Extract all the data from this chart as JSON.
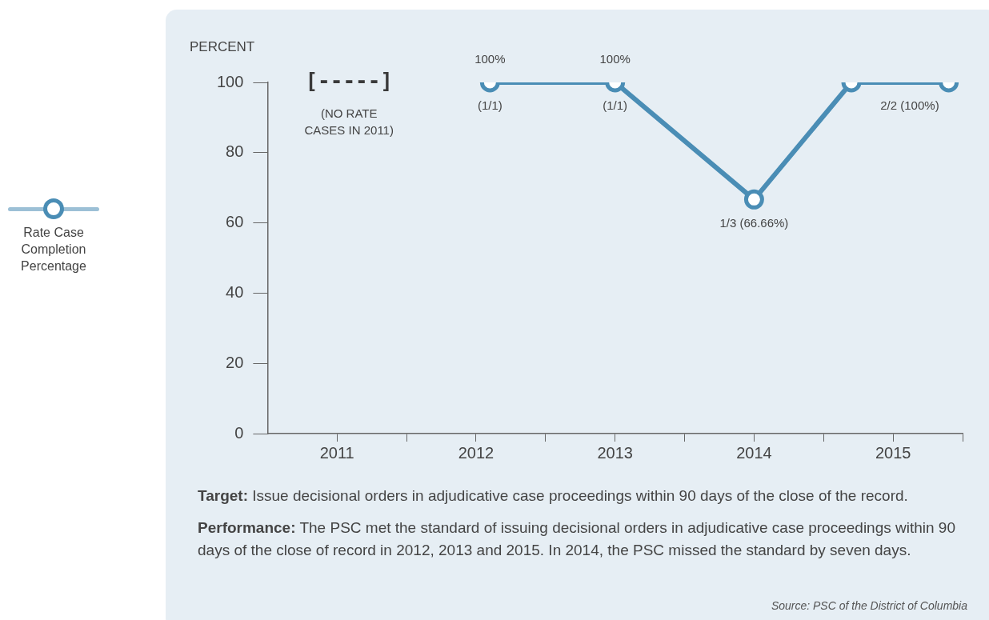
{
  "chart_data": {
    "type": "line",
    "ylabel": "PERCENT",
    "xlim": [
      2010.5,
      2015.5
    ],
    "xticks": [
      2011,
      {
        "value": 2011.5,
        "label": null
      },
      2012,
      {
        "value": 2012.5,
        "label": null
      },
      2013,
      {
        "value": 2013.5,
        "label": null
      },
      2014,
      {
        "value": 2014.5,
        "label": null
      },
      2015,
      {
        "value": 2015.5,
        "label": null
      }
    ],
    "ylim": [
      0,
      100
    ],
    "yticks": [
      0,
      20,
      40,
      60,
      80,
      100
    ],
    "grid": false,
    "legend": "left",
    "marker": "circle",
    "line_style": "solid",
    "series": [
      {
        "name": "Rate Case Completion Percentage",
        "color": "#4a8db5",
        "x": [
          2012.1,
          2013,
          2014,
          2014.7,
          2015.4
        ],
        "values": [
          100,
          100,
          66.66,
          100,
          100
        ]
      }
    ],
    "annotations": [
      "[-----]",
      "(NO RATE\nCASES IN 2011)",
      {
        "text": "100%",
        "x": 2012.1,
        "y": 100
      },
      {
        "text": "(1/1)",
        "x": 2012.1,
        "y": 100
      },
      {
        "text": "100%",
        "x": 2013,
        "y": 100
      },
      {
        "text": "(1/1)",
        "x": 2013,
        "y": 100
      },
      {
        "text": "1/3 (66.66%)",
        "x": 2014,
        "y": 66.66
      },
      {
        "text": "2/2 (100%)",
        "x": 2015.4,
        "y": 100
      },
      "Target: Issue decisional orders in adjudicative case proceedings within 90 days of the close of the record.",
      "Performance: The PSC met the standard of issuing decisional orders in adjudicative case proceedings within 90 days of the close of record in 2012, 2013 and 2015.  In 2014, the PSC missed the standard by seven days.",
      "Source: PSC of the District of Columbia"
    ]
  }
}
